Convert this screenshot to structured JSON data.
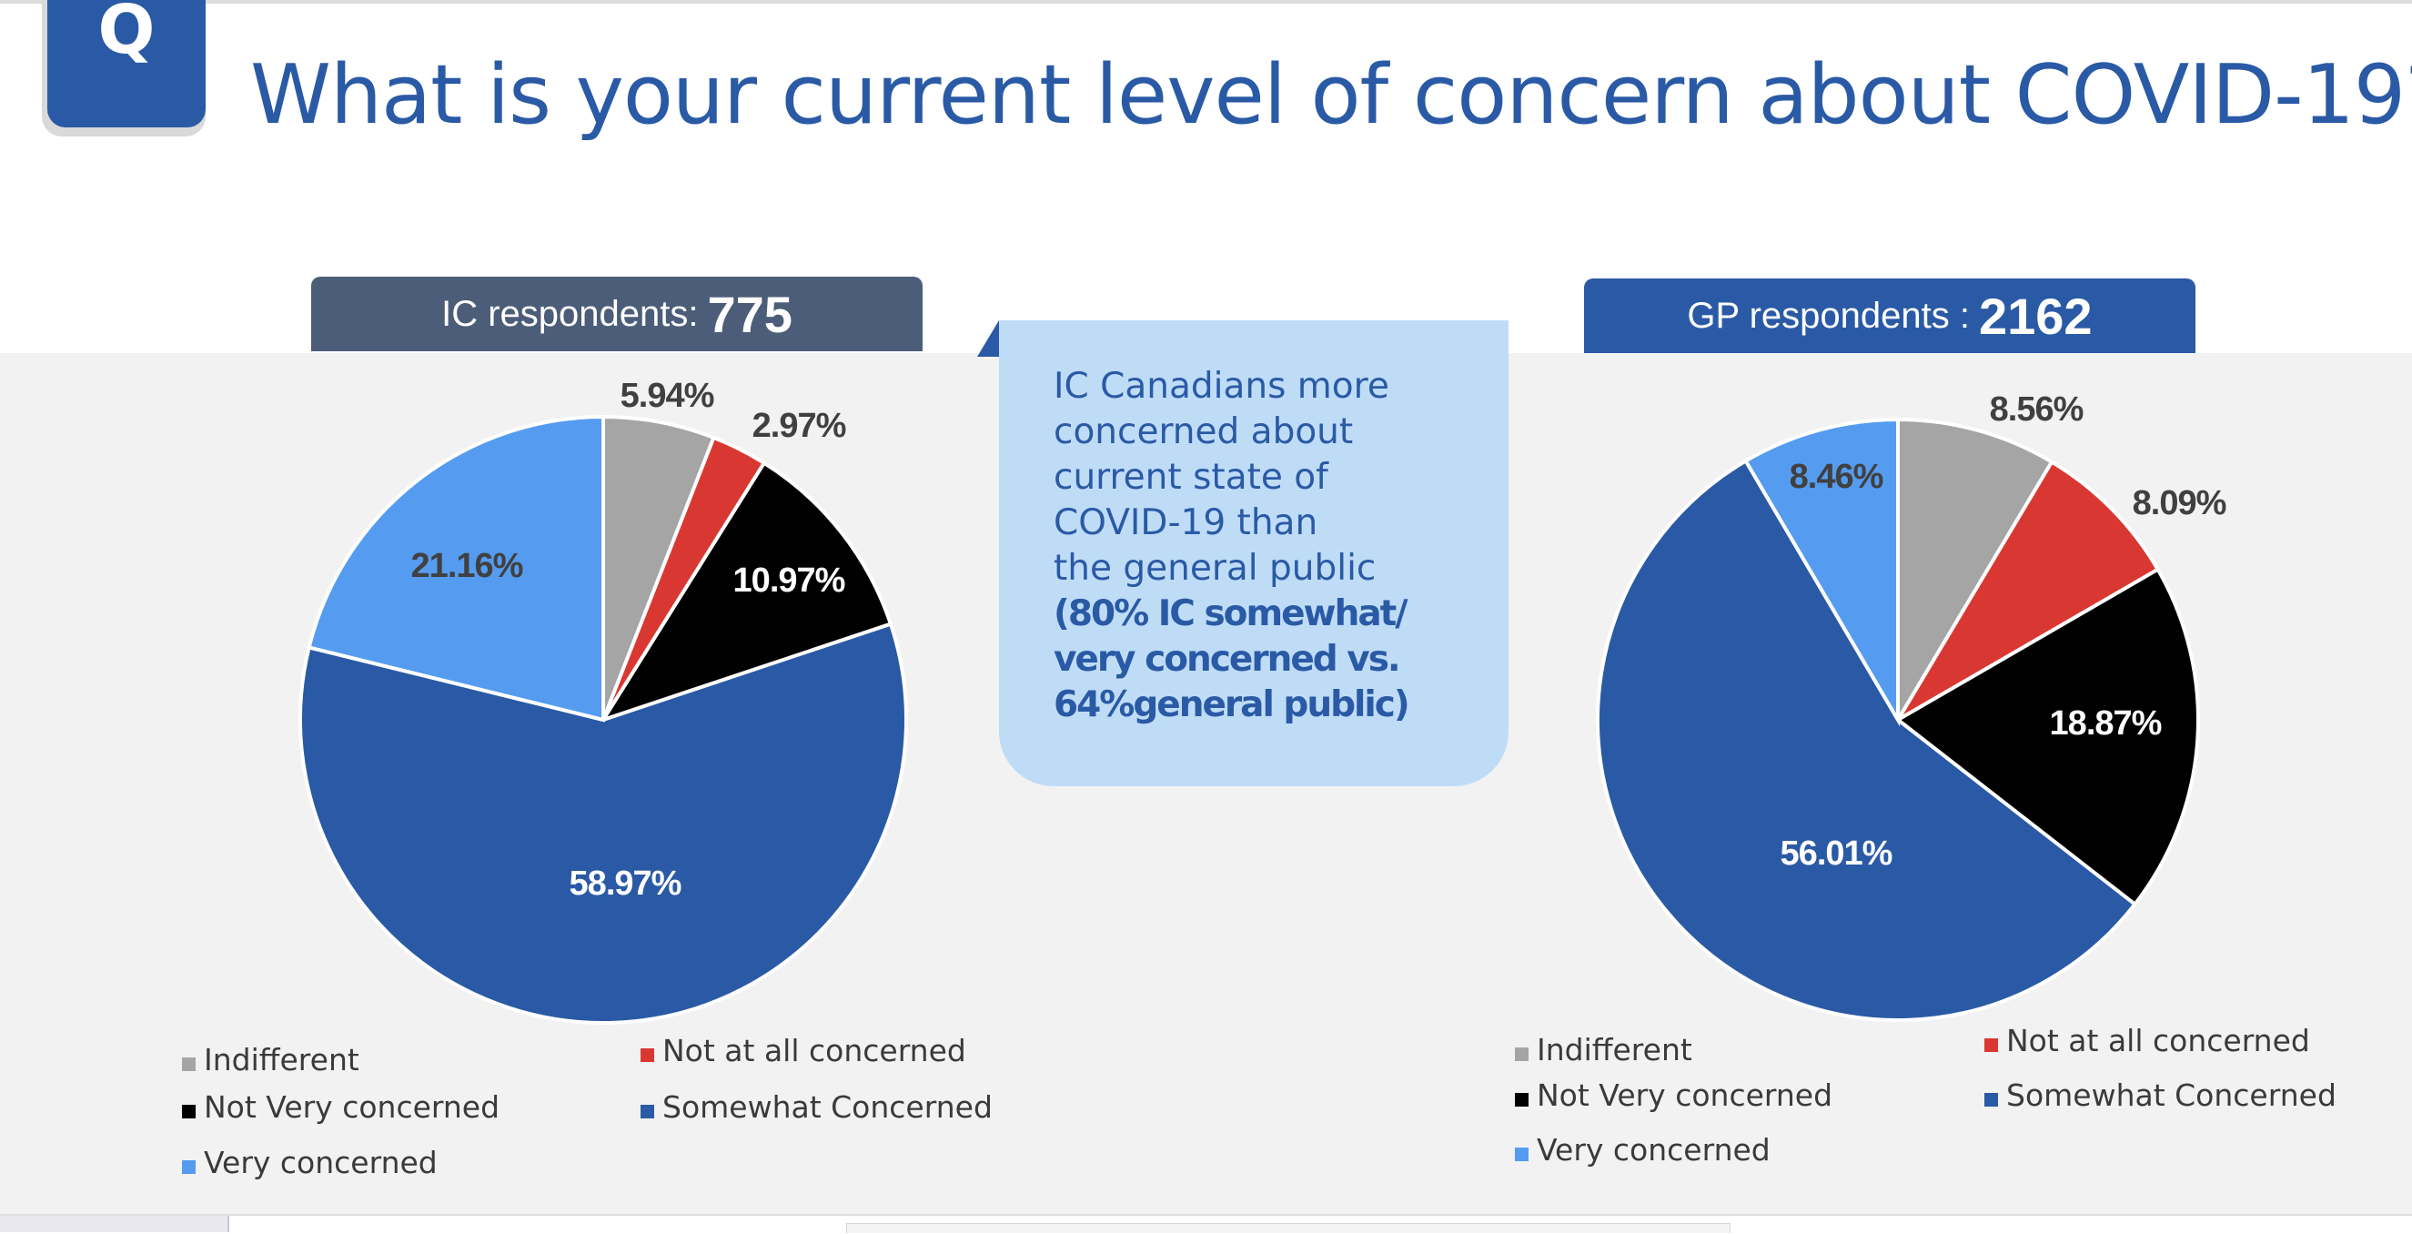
{
  "badge": "Q",
  "title": "What is your current level of concern about COVID-19?",
  "callout": {
    "lines": [
      "IC Canadians more",
      "concerned about",
      "current state of",
      "COVID-19 than",
      "the general public"
    ],
    "bold_lines": [
      "(80% IC somewhat/",
      "very concerned vs.",
      "64%general public)"
    ]
  },
  "colors": {
    "Indifferent": "#a5a5a5",
    "Not at all concerned": "#d93832",
    "Not Very concerned": "#000000",
    "Somewhat Concerned": "#2a5aa5",
    "Very concerned": "#559cf0"
  },
  "chart_data": [
    {
      "type": "pie",
      "header_label": "IC respondents:",
      "header_count": "775",
      "categories": [
        "Indifferent",
        "Not at all concerned",
        "Not Very concerned",
        "Somewhat Concerned",
        "Very concerned"
      ],
      "values": [
        5.94,
        2.97,
        10.97,
        58.97,
        21.16
      ],
      "labels": [
        "5.94%",
        "2.97%",
        "10.97%",
        "58.97%",
        "21.16%"
      ],
      "legend": [
        "Indifferent",
        "Not at all concerned",
        "Not Very concerned",
        "Somewhat Concerned",
        "Very concerned"
      ]
    },
    {
      "type": "pie",
      "header_label": "GP respondents :",
      "header_count": "2162",
      "categories": [
        "Indifferent",
        "Not at all concerned",
        "Not Very concerned",
        "Somewhat Concerned",
        "Very concerned"
      ],
      "values": [
        8.56,
        8.09,
        18.87,
        56.01,
        8.46
      ],
      "labels": [
        "8.56%",
        "8.09%",
        "18.87%",
        "56.01%",
        "8.46%"
      ],
      "legend": [
        "Indifferent",
        "Not at all concerned",
        "Not Very concerned",
        "Somewhat Concerned",
        "Very concerned"
      ]
    }
  ]
}
